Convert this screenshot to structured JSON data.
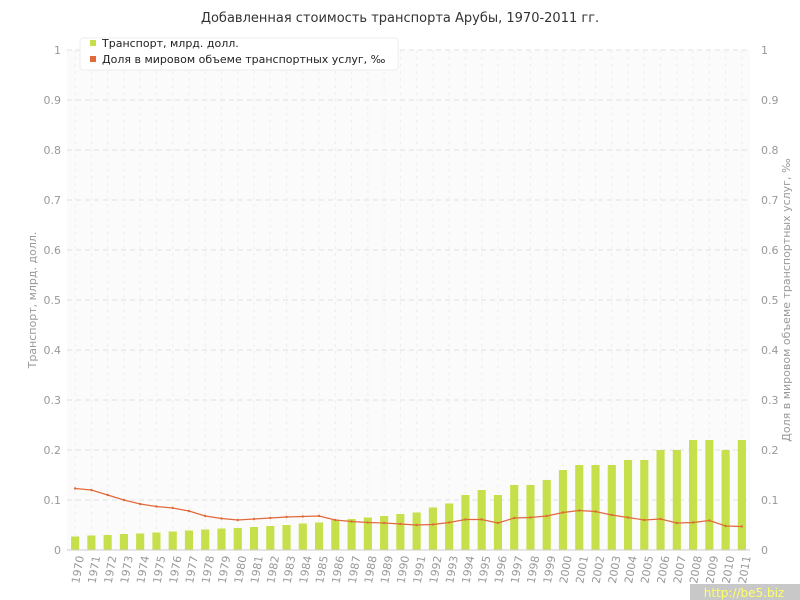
{
  "chart_data": {
    "type": "bar",
    "title": "Добавленная стоимость транспорта Арубы, 1970-2011 гг.",
    "ylabel": "Транспорт, млрд. долл.",
    "y2label": "Доля в мировом объеме транспортных услуг, ‰",
    "ylim": [
      0,
      1
    ],
    "y2lim": [
      0,
      1
    ],
    "yticks": [
      "0",
      "0.1",
      "0.2",
      "0.3",
      "0.4",
      "0.5",
      "0.6",
      "0.7",
      "0.8",
      "0.9",
      "1"
    ],
    "grid": true,
    "legend_position": "top-left",
    "categories": [
      "1970",
      "1971",
      "1972",
      "1973",
      "1974",
      "1975",
      "1976",
      "1977",
      "1978",
      "1979",
      "1980",
      "1981",
      "1982",
      "1983",
      "1984",
      "1985",
      "1986",
      "1987",
      "1988",
      "1989",
      "1990",
      "1991",
      "1992",
      "1993",
      "1994",
      "1995",
      "1996",
      "1997",
      "1998",
      "1999",
      "2000",
      "2001",
      "2002",
      "2003",
      "2004",
      "2005",
      "2006",
      "2007",
      "2008",
      "2009",
      "2010",
      "2011"
    ],
    "series": [
      {
        "name": "Транспорт, млрд. долл.",
        "type": "bar",
        "axis": "left",
        "color": "#c5e04a",
        "values": [
          0.027,
          0.029,
          0.03,
          0.032,
          0.033,
          0.035,
          0.037,
          0.039,
          0.041,
          0.043,
          0.044,
          0.046,
          0.048,
          0.05,
          0.053,
          0.055,
          0.06,
          0.062,
          0.065,
          0.068,
          0.072,
          0.075,
          0.085,
          0.093,
          0.11,
          0.12,
          0.11,
          0.13,
          0.13,
          0.14,
          0.16,
          0.17,
          0.17,
          0.17,
          0.18,
          0.18,
          0.2,
          0.2,
          0.22,
          0.22,
          0.2,
          0.22
        ]
      },
      {
        "name": "Доля в мировом объеме транспортных услуг, ‰",
        "type": "line",
        "axis": "right",
        "color": "#e06a3a",
        "values": [
          0.123,
          0.12,
          0.11,
          0.1,
          0.092,
          0.087,
          0.084,
          0.078,
          0.068,
          0.063,
          0.06,
          0.062,
          0.064,
          0.066,
          0.067,
          0.068,
          0.06,
          0.057,
          0.055,
          0.054,
          0.052,
          0.05,
          0.051,
          0.055,
          0.061,
          0.061,
          0.054,
          0.064,
          0.065,
          0.068,
          0.075,
          0.079,
          0.077,
          0.07,
          0.065,
          0.06,
          0.062,
          0.054,
          0.055,
          0.059,
          0.048,
          0.047
        ]
      }
    ]
  },
  "watermark": "http://be5.biz"
}
